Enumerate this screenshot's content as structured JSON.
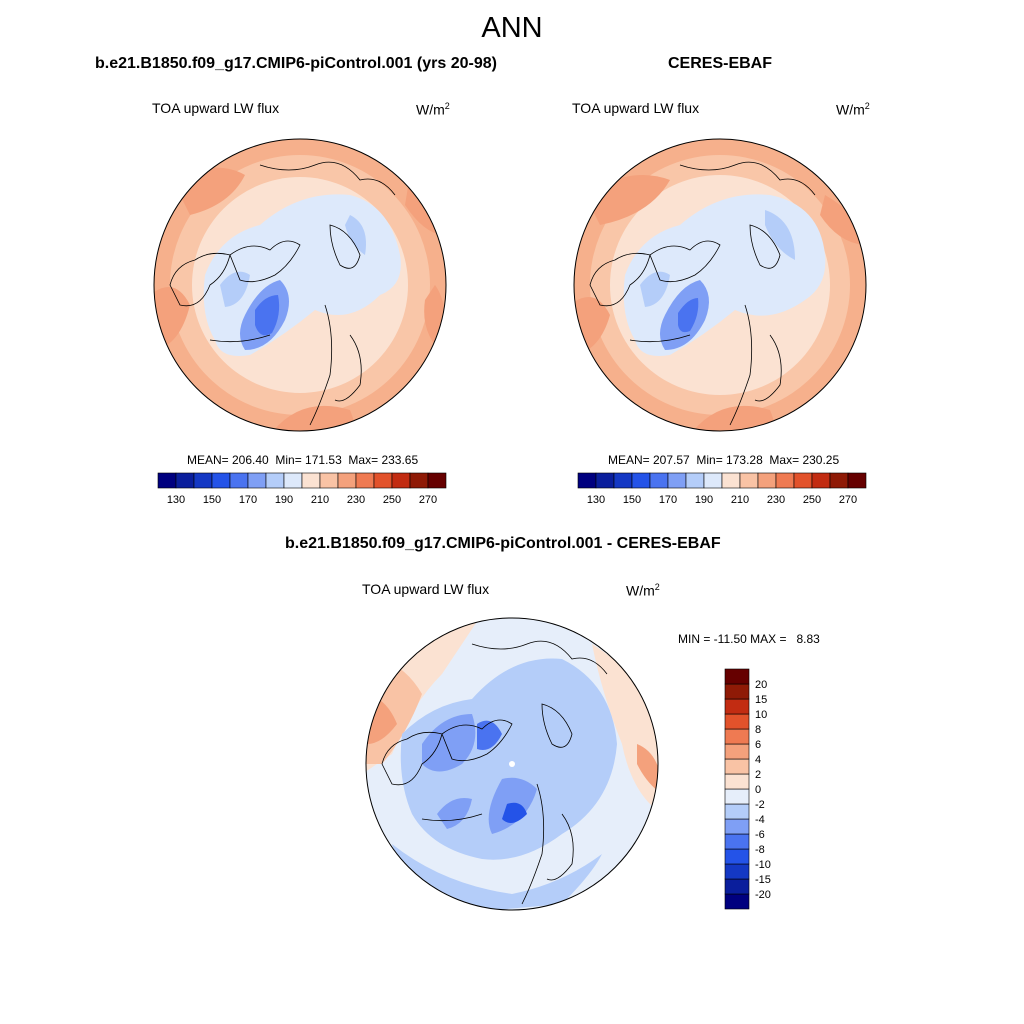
{
  "main_title": "ANN",
  "panels": [
    {
      "title": "b.e21.B1850.f09_g17.CMIP6-piControl.001 (yrs 20-98)",
      "var_label": "TOA upward LW flux",
      "units_base": "W/m",
      "units_exp": "2",
      "stats": "MEAN= 206.40  Min= 171.53  Max= 233.65"
    },
    {
      "title": "CERES-EBAF",
      "var_label": "TOA upward LW flux",
      "units_base": "W/m",
      "units_exp": "2",
      "stats": "MEAN= 207.57  Min= 173.28  Max= 230.25"
    },
    {
      "title": "b.e21.B1850.f09_g17.CMIP6-piControl.001 - CERES-EBAF",
      "var_label": "TOA upward LW flux",
      "units_base": "W/m",
      "units_exp": "2",
      "stats": "MIN = -11.50 MAX =   8.83"
    }
  ],
  "chart_data": [
    {
      "type": "heatmap",
      "projection": "north polar stereographic",
      "colorbar": {
        "orientation": "horizontal",
        "levels": [
          130,
          140,
          150,
          160,
          170,
          180,
          190,
          200,
          210,
          220,
          230,
          240,
          250,
          260,
          270
        ],
        "tick_labels": [
          "130",
          "150",
          "170",
          "190",
          "210",
          "230",
          "250",
          "270"
        ],
        "colors": [
          "#00007f",
          "#0a1e9c",
          "#1438c4",
          "#2453e8",
          "#4a73f0",
          "#7f9ff5",
          "#b4cdf9",
          "#dde9fb",
          "#fbe2d2",
          "#f9c3a5",
          "#f4a17c",
          "#ef7a52",
          "#e2522b",
          "#c22c12",
          "#8f1a06",
          "#660000"
        ]
      },
      "stats": {
        "mean": 206.4,
        "min": 171.53,
        "max": 233.65
      }
    },
    {
      "type": "heatmap",
      "projection": "north polar stereographic",
      "colorbar": {
        "orientation": "horizontal",
        "levels": [
          130,
          140,
          150,
          160,
          170,
          180,
          190,
          200,
          210,
          220,
          230,
          240,
          250,
          260,
          270
        ],
        "tick_labels": [
          "130",
          "150",
          "170",
          "190",
          "210",
          "230",
          "250",
          "270"
        ],
        "colors": [
          "#00007f",
          "#0a1e9c",
          "#1438c4",
          "#2453e8",
          "#4a73f0",
          "#7f9ff5",
          "#b4cdf9",
          "#dde9fb",
          "#fbe2d2",
          "#f9c3a5",
          "#f4a17c",
          "#ef7a52",
          "#e2522b",
          "#c22c12",
          "#8f1a06",
          "#660000"
        ]
      },
      "stats": {
        "mean": 207.57,
        "min": 173.28,
        "max": 230.25
      }
    },
    {
      "type": "heatmap",
      "projection": "north polar stereographic",
      "colorbar": {
        "orientation": "vertical",
        "levels": [
          -20,
          -15,
          -10,
          -8,
          -6,
          -4,
          -2,
          0,
          2,
          4,
          6,
          8,
          10,
          15,
          20
        ],
        "tick_labels": [
          "-20",
          "-15",
          "-10",
          "-8",
          "-6",
          "-4",
          "-2",
          "0",
          "2",
          "4",
          "6",
          "8",
          "10",
          "15",
          "20"
        ],
        "colors": [
          "#00007f",
          "#0a1e9c",
          "#1438c4",
          "#2453e8",
          "#4a73f0",
          "#7f9ff5",
          "#b4cdf9",
          "#e6eefa",
          "#fbe2d2",
          "#f9c3a5",
          "#f4a17c",
          "#ef7a52",
          "#e2522b",
          "#c22c12",
          "#8f1a06",
          "#660000"
        ]
      },
      "stats": {
        "min": -11.5,
        "max": 8.83
      }
    }
  ]
}
